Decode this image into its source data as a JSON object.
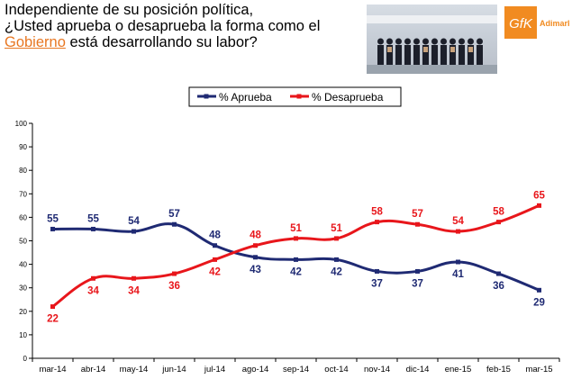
{
  "question": {
    "line1": "Independiente de su posición política,",
    "line2": "¿Usted aprueba o desaprueba la forma como el",
    "highlight": "Gobierno",
    "line3_rest": " está desarrollando su labor?"
  },
  "logo": {
    "brand": "GfK",
    "name": "Adimark",
    "color": "#f18b21"
  },
  "photo": {
    "icon": "group-photo-image"
  },
  "chart_data": {
    "type": "line",
    "categories": [
      "mar-14",
      "abr-14",
      "may-14",
      "jun-14",
      "jul-14",
      "ago-14",
      "sep-14",
      "oct-14",
      "nov-14",
      "dic-14",
      "ene-15",
      "feb-15",
      "mar-15"
    ],
    "ylim": [
      0,
      100
    ],
    "yticks": [
      0,
      10,
      20,
      30,
      40,
      50,
      60,
      70,
      80,
      90,
      100
    ],
    "grid": false,
    "legend_position": "top-center",
    "series": [
      {
        "name": "% Aprueba",
        "color": "#1f2a73",
        "values": [
          55,
          55,
          54,
          57,
          48,
          43,
          42,
          42,
          37,
          37,
          41,
          36,
          29
        ]
      },
      {
        "name": "% Desaprueba",
        "color": "#e8161b",
        "values": [
          22,
          34,
          34,
          36,
          42,
          48,
          51,
          51,
          58,
          57,
          54,
          58,
          65
        ]
      }
    ]
  }
}
